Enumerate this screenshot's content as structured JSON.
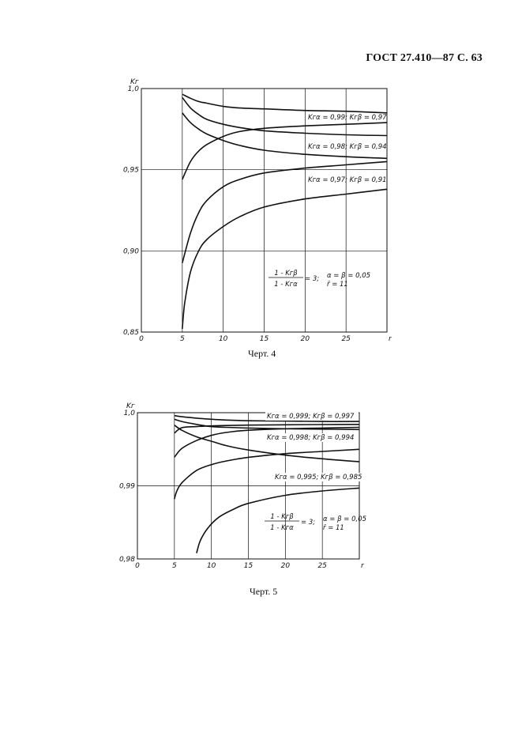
{
  "header": "ГОСТ 27.410—87 С. 63",
  "chart_data": [
    {
      "type": "line",
      "ylabel": "Kг",
      "xlabel": "r",
      "xlim": [
        0,
        30
      ],
      "ylim": [
        0.85,
        1.0
      ],
      "x_ticks": [
        0,
        5,
        10,
        15,
        20,
        25
      ],
      "x_tick_labels": [
        "0",
        "5",
        "10",
        "15",
        "20",
        "25"
      ],
      "y_ticks": [
        0.85,
        0.9,
        0.95,
        1.0
      ],
      "y_tick_labels": [
        "0,85",
        "0,90",
        "0,95",
        "1,0"
      ],
      "grid": true,
      "series": [
        {
          "x": [
            5,
            6,
            7,
            8,
            10,
            12,
            15,
            20,
            25,
            30
          ],
          "y": [
            0.9965,
            0.994,
            0.992,
            0.991,
            0.989,
            0.988,
            0.9875,
            0.9865,
            0.986,
            0.985
          ]
        },
        {
          "x": [
            5,
            6,
            7,
            8,
            10,
            12,
            15,
            20,
            25,
            30
          ],
          "y": [
            0.9945,
            0.988,
            0.984,
            0.981,
            0.978,
            0.976,
            0.974,
            0.9725,
            0.9715,
            0.971
          ]
        },
        {
          "x": [
            5,
            6,
            7,
            8,
            10,
            12,
            15,
            20,
            25,
            30
          ],
          "y": [
            0.944,
            0.955,
            0.9615,
            0.9655,
            0.9705,
            0.9735,
            0.9755,
            0.977,
            0.978,
            0.979
          ]
        },
        {
          "x": [
            5,
            6,
            7,
            8,
            10,
            12,
            15,
            20,
            25,
            30
          ],
          "y": [
            0.985,
            0.979,
            0.975,
            0.972,
            0.968,
            0.965,
            0.962,
            0.9595,
            0.958,
            0.957
          ]
        },
        {
          "x": [
            5,
            6,
            7,
            8,
            10,
            12,
            15,
            20,
            25,
            30
          ],
          "y": [
            0.8925,
            0.911,
            0.9235,
            0.931,
            0.9395,
            0.944,
            0.948,
            0.951,
            0.953,
            0.955
          ]
        },
        {
          "x": [
            5,
            5.3,
            6,
            7,
            8,
            10,
            12,
            15,
            20,
            25,
            30
          ],
          "y": [
            0.852,
            0.868,
            0.887,
            0.9,
            0.907,
            0.915,
            0.921,
            0.927,
            0.932,
            0.935,
            0.938
          ]
        }
      ],
      "annotations": [
        "Kгα = 0,99;  Kгβ = 0,97",
        "Kгα = 0,98;  Kгβ = 0,94",
        "Kгα = 0,97;  Kгβ = 0,91",
        "1 - Kгβ / 1 - Kгα = 3;",
        "α = β = 0,05",
        "r̄ = 11"
      ],
      "caption": "Черт. 4"
    },
    {
      "type": "line",
      "ylabel": "Kг",
      "xlabel": "r",
      "xlim": [
        0,
        30
      ],
      "ylim": [
        0.98,
        1.0
      ],
      "x_ticks": [
        0,
        5,
        10,
        15,
        20,
        25
      ],
      "x_tick_labels": [
        "0",
        "5",
        "10",
        "15",
        "20",
        "25"
      ],
      "y_ticks": [
        0.98,
        0.99,
        1.0
      ],
      "y_tick_labels": [
        "0,98",
        "0,99",
        "1,0"
      ],
      "grid": true,
      "series": [
        {
          "x": [
            5,
            6,
            8,
            10,
            12,
            15,
            20,
            25,
            30
          ],
          "y": [
            0.9996,
            0.99945,
            0.99925,
            0.9991,
            0.999,
            0.9989,
            0.99885,
            0.9988,
            0.9988
          ]
        },
        {
          "x": [
            5,
            6,
            8,
            10,
            12,
            15,
            20,
            25,
            30
          ],
          "y": [
            0.9991,
            0.9988,
            0.9984,
            0.9981,
            0.998,
            0.9979,
            0.9978,
            0.99775,
            0.9977
          ]
        },
        {
          "x": [
            5,
            6,
            8,
            10,
            12,
            15,
            20,
            25,
            30
          ],
          "y": [
            0.9972,
            0.99795,
            0.9981,
            0.9982,
            0.99825,
            0.9983,
            0.99835,
            0.99838,
            0.9984
          ]
        },
        {
          "x": [
            5,
            6,
            8,
            10,
            12,
            15,
            20,
            25,
            30
          ],
          "y": [
            0.9983,
            0.9976,
            0.9967,
            0.9961,
            0.9955,
            0.9949,
            0.9942,
            0.9937,
            0.9933
          ]
        },
        {
          "x": [
            5,
            6,
            8,
            10,
            12,
            15,
            20,
            25,
            30
          ],
          "y": [
            0.9939,
            0.9951,
            0.9962,
            0.9969,
            0.9973,
            0.9976,
            0.9978,
            0.9979,
            0.998
          ]
        },
        {
          "x": [
            5,
            5.3,
            6,
            8,
            10,
            12,
            15,
            20,
            25,
            30
          ],
          "y": [
            0.9882,
            0.9892,
            0.9904,
            0.9921,
            0.9929,
            0.9934,
            0.9939,
            0.9944,
            0.9947,
            0.995
          ]
        },
        {
          "x": [
            8,
            8.5,
            9.5,
            11,
            13,
            15,
            20,
            25,
            30
          ],
          "y": [
            0.9808,
            0.9825,
            0.9842,
            0.9857,
            0.9868,
            0.9876,
            0.9887,
            0.9893,
            0.9897
          ]
        }
      ],
      "annotations": [
        "Kгα = 0,999;  Kгβ = 0,997",
        "Kгα = 0,998;  Kгβ = 0,994",
        "Kгα = 0,995;  Kгβ = 0,985",
        "1 - Kгβ / 1 - Kгα = 3;",
        "α = β = 0,05",
        "r̄ = 11"
      ],
      "caption": "Черт. 5"
    }
  ]
}
